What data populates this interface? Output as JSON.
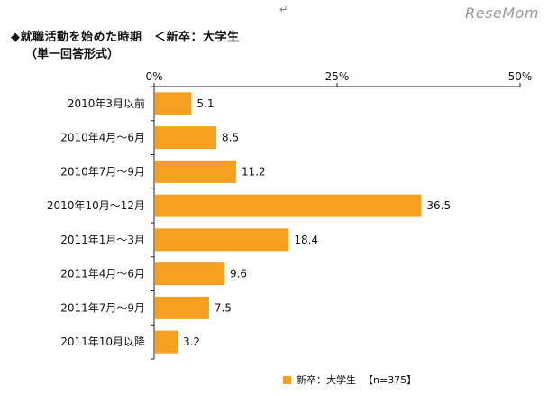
{
  "header": {
    "title": "◆就職活動を始めた時期　＜新卒：大学生",
    "subtitle": "（単一回答形式）",
    "return_mark": "↵",
    "logo": "ReseMom"
  },
  "colors": {
    "bar": "#f5a020",
    "axis": "#222222"
  },
  "chart_data": {
    "type": "bar",
    "orientation": "horizontal",
    "categories": [
      "2010年3月以前",
      "2010年4月～6月",
      "2010年7月～9月",
      "2010年10月～12月",
      "2011年1月～3月",
      "2011年4月～6月",
      "2011年7月～9月",
      "2011年10月以降"
    ],
    "series": [
      {
        "name": "新卒：大学生",
        "values": [
          5.1,
          8.5,
          11.2,
          36.5,
          18.4,
          9.6,
          7.5,
          3.2
        ]
      }
    ],
    "xlim": [
      0,
      50
    ],
    "xticks": [
      0,
      25,
      50
    ],
    "xtick_labels": [
      "0%",
      "25%",
      "50%"
    ],
    "grid": false,
    "legend": {
      "position": "bottom",
      "label": "新卒：大学生",
      "n_label": "【n=375】"
    }
  }
}
